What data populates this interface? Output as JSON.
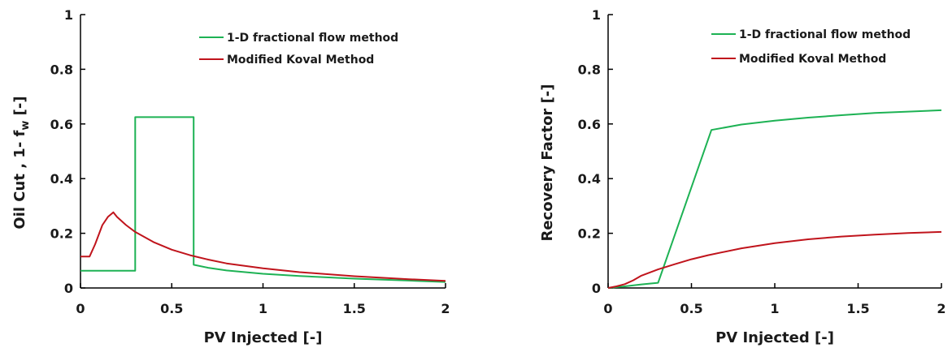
{
  "chart_data": [
    {
      "type": "line",
      "xlabel": "PV Injected [-]",
      "ylabel": "Oil Cut , 1- f",
      "ylabel_sub": "w",
      "ylabel_tail": " [-]",
      "xlim": [
        0,
        2
      ],
      "ylim": [
        0,
        1
      ],
      "xticks": [
        0,
        0.5,
        1,
        1.5,
        2
      ],
      "xtick_labels": [
        "0",
        "0.5",
        "1",
        "1.5",
        "2"
      ],
      "yticks": [
        0,
        0.2,
        0.4,
        0.6,
        0.8,
        1
      ],
      "ytick_labels": [
        "0",
        "0.2",
        "0.4",
        "0.6",
        "0.8",
        "1"
      ],
      "legend_position": "top-right",
      "series": [
        {
          "name": "1-D fractional flow method",
          "color": "#1db254",
          "x": [
            0,
            0.3,
            0.3,
            0.62,
            0.62,
            0.7,
            0.8,
            1.0,
            1.2,
            1.5,
            1.8,
            2.0
          ],
          "y": [
            0.063,
            0.063,
            0.625,
            0.625,
            0.085,
            0.074,
            0.064,
            0.052,
            0.044,
            0.034,
            0.027,
            0.022
          ]
        },
        {
          "name": "Modified Koval Method",
          "color": "#c0141c",
          "x": [
            0,
            0.05,
            0.08,
            0.12,
            0.15,
            0.18,
            0.2,
            0.25,
            0.3,
            0.4,
            0.5,
            0.6,
            0.7,
            0.8,
            1.0,
            1.2,
            1.5,
            1.8,
            2.0
          ],
          "y": [
            0.115,
            0.115,
            0.16,
            0.23,
            0.26,
            0.277,
            0.26,
            0.23,
            0.205,
            0.168,
            0.14,
            0.12,
            0.104,
            0.09,
            0.072,
            0.058,
            0.043,
            0.032,
            0.026
          ]
        }
      ]
    },
    {
      "type": "line",
      "xlabel": "PV Injected [-]",
      "ylabel": "Recovery Factor  [-]",
      "xlim": [
        0,
        2
      ],
      "ylim": [
        0,
        1
      ],
      "xticks": [
        0,
        0.5,
        1,
        1.5,
        2
      ],
      "xtick_labels": [
        "0",
        "0.5",
        "1",
        "1.5",
        "2"
      ],
      "yticks": [
        0,
        0.2,
        0.4,
        0.6,
        0.8,
        1
      ],
      "ytick_labels": [
        "0",
        "0.2",
        "0.4",
        "0.6",
        "0.8",
        "1"
      ],
      "legend_position": "top-right",
      "series": [
        {
          "name": "1-D fractional flow method",
          "color": "#1db254",
          "x": [
            0,
            0.1,
            0.2,
            0.3,
            0.62,
            0.8,
            1.0,
            1.2,
            1.4,
            1.6,
            1.8,
            2.0
          ],
          "y": [
            0,
            0.006,
            0.013,
            0.019,
            0.578,
            0.598,
            0.612,
            0.623,
            0.632,
            0.64,
            0.645,
            0.65
          ]
        },
        {
          "name": "Modified Koval Method",
          "color": "#c0141c",
          "x": [
            0,
            0.05,
            0.1,
            0.15,
            0.2,
            0.3,
            0.4,
            0.5,
            0.6,
            0.8,
            1.0,
            1.2,
            1.4,
            1.6,
            1.8,
            2.0
          ],
          "y": [
            0,
            0.006,
            0.014,
            0.028,
            0.045,
            0.068,
            0.087,
            0.105,
            0.12,
            0.145,
            0.164,
            0.178,
            0.188,
            0.195,
            0.201,
            0.205
          ]
        }
      ]
    }
  ]
}
